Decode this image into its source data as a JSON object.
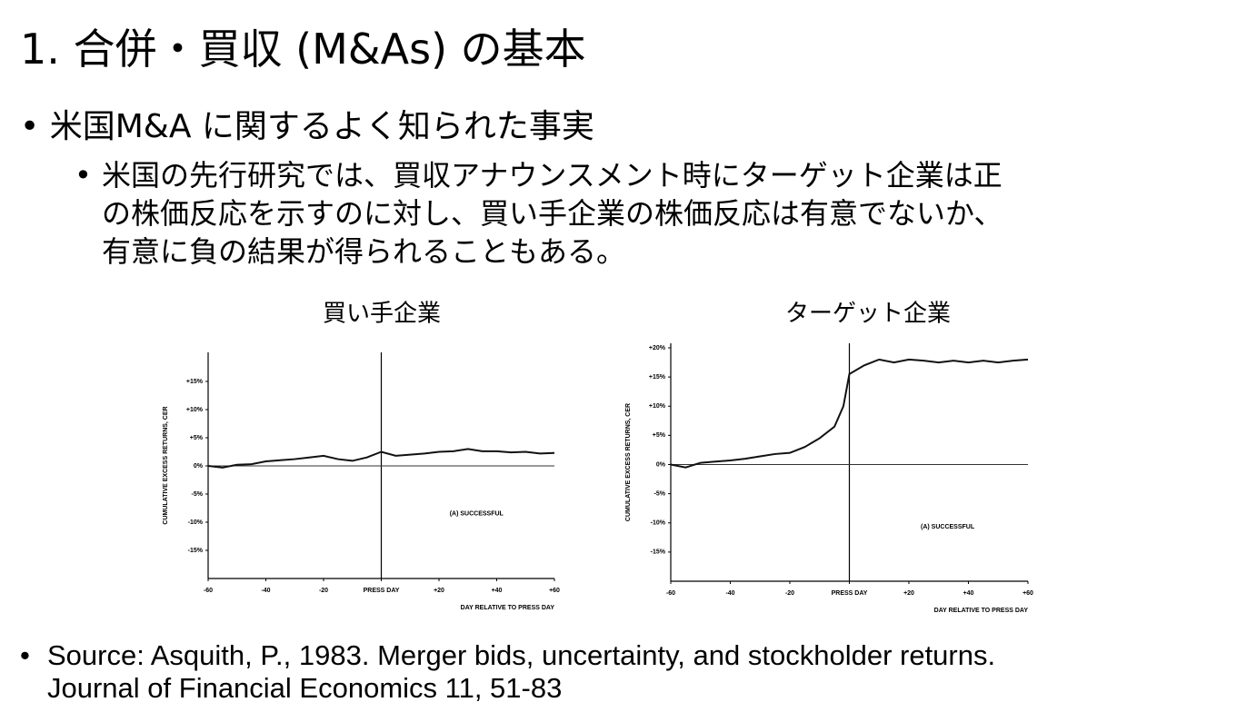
{
  "title": "1. 合併・買収 (M&As) の基本",
  "bullet": "米国M&A に関するよく知られた事実",
  "sub_bullet_lines": [
    "米国の先行研究では、買収アナウンスメント時にターゲット企業は正",
    "の株価反応を示すのに対し、買い手企業の株価反応は有意でないか、",
    "有意に負の結果が得られることもある。"
  ],
  "source_lines": [
    "Source: Asquith, P., 1983. Merger bids, uncertainty, and stockholder returns.",
    "Journal of Financial Economics 11, 51-83"
  ],
  "chart_data": [
    {
      "type": "line",
      "title": "買い手企業",
      "y_label": "CUMULATIVE EXCESS RETURNS, CER",
      "x_label": "DAY RELATIVE TO PRESS DAY",
      "annotation": "(A) SUCCESSFUL",
      "color": "#111111",
      "x": [
        -60,
        -55,
        -50,
        -45,
        -40,
        -35,
        -30,
        -25,
        -20,
        -15,
        -10,
        -5,
        0,
        5,
        10,
        15,
        20,
        25,
        30,
        35,
        40,
        45,
        50,
        55,
        60
      ],
      "values": [
        0,
        -0.3,
        0.2,
        0.3,
        0.8,
        1.0,
        1.2,
        1.5,
        1.8,
        1.2,
        0.9,
        1.5,
        2.5,
        1.8,
        2.0,
        2.2,
        2.5,
        2.6,
        3.0,
        2.6,
        2.6,
        2.4,
        2.5,
        2.2,
        2.3
      ],
      "xlim": [
        -60,
        60
      ],
      "xticks": [
        -60,
        -40,
        -20,
        {
          "value": 0,
          "label": "PRESS DAY"
        },
        {
          "value": 20,
          "label": "+20"
        },
        {
          "value": 40,
          "label": "+40"
        },
        {
          "value": 60,
          "label": "+60"
        }
      ],
      "ylim": [
        -20,
        20
      ],
      "yticks": [
        {
          "value": 15,
          "label": "+15%"
        },
        {
          "value": 10,
          "label": "+10%"
        },
        {
          "value": 5,
          "label": "+5%"
        },
        {
          "value": 0,
          "label": "0%"
        },
        {
          "value": -5,
          "label": "-5%"
        },
        {
          "value": -10,
          "label": "-10%"
        },
        {
          "value": -15,
          "label": "-15%"
        }
      ]
    },
    {
      "type": "line",
      "title": "ターゲット企業",
      "y_label": "CUMULATIVE EXCESS RETURNS, CER",
      "x_label": "DAY RELATIVE TO PRESS DAY",
      "annotation": "(A) SUCCESSFUL",
      "color": "#111111",
      "x": [
        -60,
        -55,
        -50,
        -45,
        -40,
        -35,
        -30,
        -25,
        -20,
        -15,
        -10,
        -5,
        -2,
        0,
        5,
        10,
        15,
        20,
        25,
        30,
        35,
        40,
        45,
        50,
        55,
        60
      ],
      "values": [
        0,
        -0.5,
        0.3,
        0.5,
        0.7,
        1.0,
        1.4,
        1.8,
        2.0,
        3.0,
        4.5,
        6.5,
        10,
        15.5,
        17.0,
        18.0,
        17.5,
        18.0,
        17.8,
        17.5,
        17.8,
        17.5,
        17.8,
        17.5,
        17.8,
        18.0
      ],
      "xlim": [
        -60,
        60
      ],
      "xticks": [
        -60,
        -40,
        -20,
        {
          "value": 0,
          "label": "PRESS DAY"
        },
        {
          "value": 20,
          "label": "+20"
        },
        {
          "value": 40,
          "label": "+40"
        },
        {
          "value": 60,
          "label": "+60"
        }
      ],
      "ylim": [
        -20,
        20
      ],
      "yticks": [
        {
          "value": 20,
          "label": "+20%"
        },
        {
          "value": 15,
          "label": "+15%"
        },
        {
          "value": 10,
          "label": "+10%"
        },
        {
          "value": 5,
          "label": "+5%"
        },
        {
          "value": 0,
          "label": "0%"
        },
        {
          "value": -5,
          "label": "-5%"
        },
        {
          "value": -10,
          "label": "-10%"
        },
        {
          "value": -15,
          "label": "-15%"
        }
      ]
    }
  ]
}
